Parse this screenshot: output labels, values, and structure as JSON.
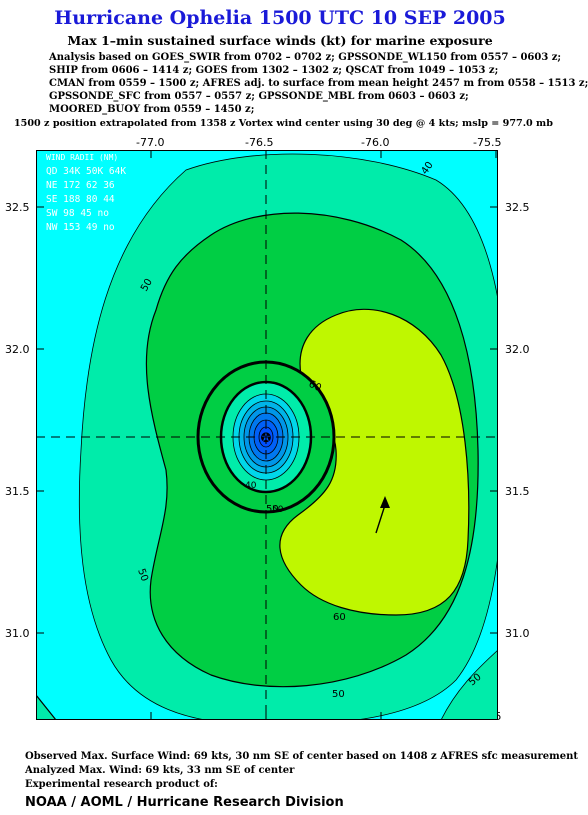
{
  "header": {
    "title": "Hurricane Ophelia 1500 UTC 10 SEP 2005",
    "subtitle": "Max 1–min sustained surface winds (kt) for marine exposure"
  },
  "analysis_lines": [
    "Analysis based on  GOES_SWIR from 0702 – 0702 z;  GPSSONDE_WL150 from 0557 – 0603 z;",
    "SHIP from 0606 – 1414 z;  GOES from 1302 – 1302 z;  QSCAT from 1049 – 1053 z;",
    "CMAN from 0559 – 1500 z;  AFRES adj. to surface from mean height 2457 m from 0558 – 1513 z;",
    "GPSSONDE_SFC from 0557 – 0557 z;  GPSSONDE_MBL from 0603 – 0603 z;",
    "MOORED_BUOY from 0559 – 1450 z;"
  ],
  "position_note": "1500 z position extrapolated from 1358 z Vortex wind center using 30 deg @ 4 kts; mslp = 977.0 mb",
  "map": {
    "lon_ticks": [
      "-77.0",
      "-76.5",
      "-76.0",
      "-75.5"
    ],
    "lat_ticks": [
      "32.5",
      "32.0",
      "31.5",
      "31.0"
    ],
    "center_label": "-76.5",
    "colors": {
      "band_lt35": "#00ffff",
      "band_35_50": "#00ecaa",
      "band_50_64": "#00ce44",
      "band_64_80": "#bff700",
      "eye_inner": "#0050ff",
      "eye_outer": "#00b4e8"
    },
    "contour_labels": [
      "40",
      "50",
      "50",
      "60",
      "60",
      "50",
      "50",
      "50",
      "40",
      "50"
    ],
    "wind_radii": {
      "header": "WIND RADII (NM)",
      "columns": "QD 34K 50K 64K",
      "rows": [
        "NE 172  62  36",
        "SE 188  80  44",
        "SW  98  45  no",
        "NW 153  49  no"
      ]
    }
  },
  "footer": {
    "observed": "Observed Max. Surface Wind: 69 kts, 30 nm SE of center based on 1408 z AFRES sfc measurement",
    "analyzed": "Analyzed Max. Wind: 69 kts, 33 nm SE of center",
    "experimental": "Experimental research product of:",
    "org": "NOAA / AOML / Hurricane Research Division"
  }
}
